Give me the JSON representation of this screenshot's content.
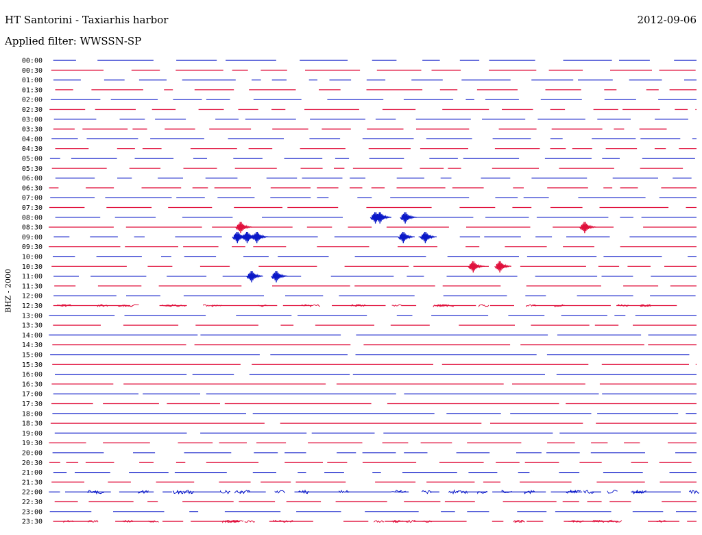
{
  "header": {
    "title": "HT Santorini - Taxiarhis harbor",
    "date": "2012-09-06",
    "filter": "Applied filter: WWSSN-SP"
  },
  "channel_label": "BHZ - 2000",
  "colors": {
    "even_trace": "#0a18c8",
    "odd_trace": "#e0103c",
    "label": "#000000"
  },
  "chart_data": {
    "type": "line",
    "title": "",
    "xlabel": "",
    "ylabel": "BHZ - 2000",
    "rows": [
      "00:00",
      "00:30",
      "01:00",
      "01:30",
      "02:00",
      "02:30",
      "03:00",
      "03:30",
      "04:00",
      "04:30",
      "05:00",
      "05:30",
      "06:00",
      "06:30",
      "07:00",
      "07:30",
      "08:00",
      "08:30",
      "09:00",
      "09:30",
      "10:00",
      "10:30",
      "11:00",
      "11:30",
      "12:00",
      "12:30",
      "13:00",
      "13:30",
      "14:00",
      "14:30",
      "15:00",
      "15:30",
      "16:00",
      "16:30",
      "17:00",
      "17:30",
      "18:00",
      "18:30",
      "19:00",
      "19:30",
      "20:00",
      "20:30",
      "21:00",
      "21:30",
      "22:00",
      "22:30",
      "23:00",
      "23:30"
    ],
    "row_duration_min": 30,
    "row_colors": "alternating blue / red",
    "events": [
      {
        "row": "08:00",
        "time_frac": [
          0.505,
          0.512,
          0.551
        ]
      },
      {
        "row": "08:30",
        "time_frac": [
          0.297,
          0.828
        ]
      },
      {
        "row": "09:00",
        "time_frac": [
          0.292,
          0.307,
          0.322,
          0.548,
          0.582
        ]
      },
      {
        "row": "10:30",
        "time_frac": [
          0.656,
          0.697
        ]
      },
      {
        "row": "11:00",
        "time_frac": [
          0.314,
          0.352
        ]
      }
    ]
  }
}
